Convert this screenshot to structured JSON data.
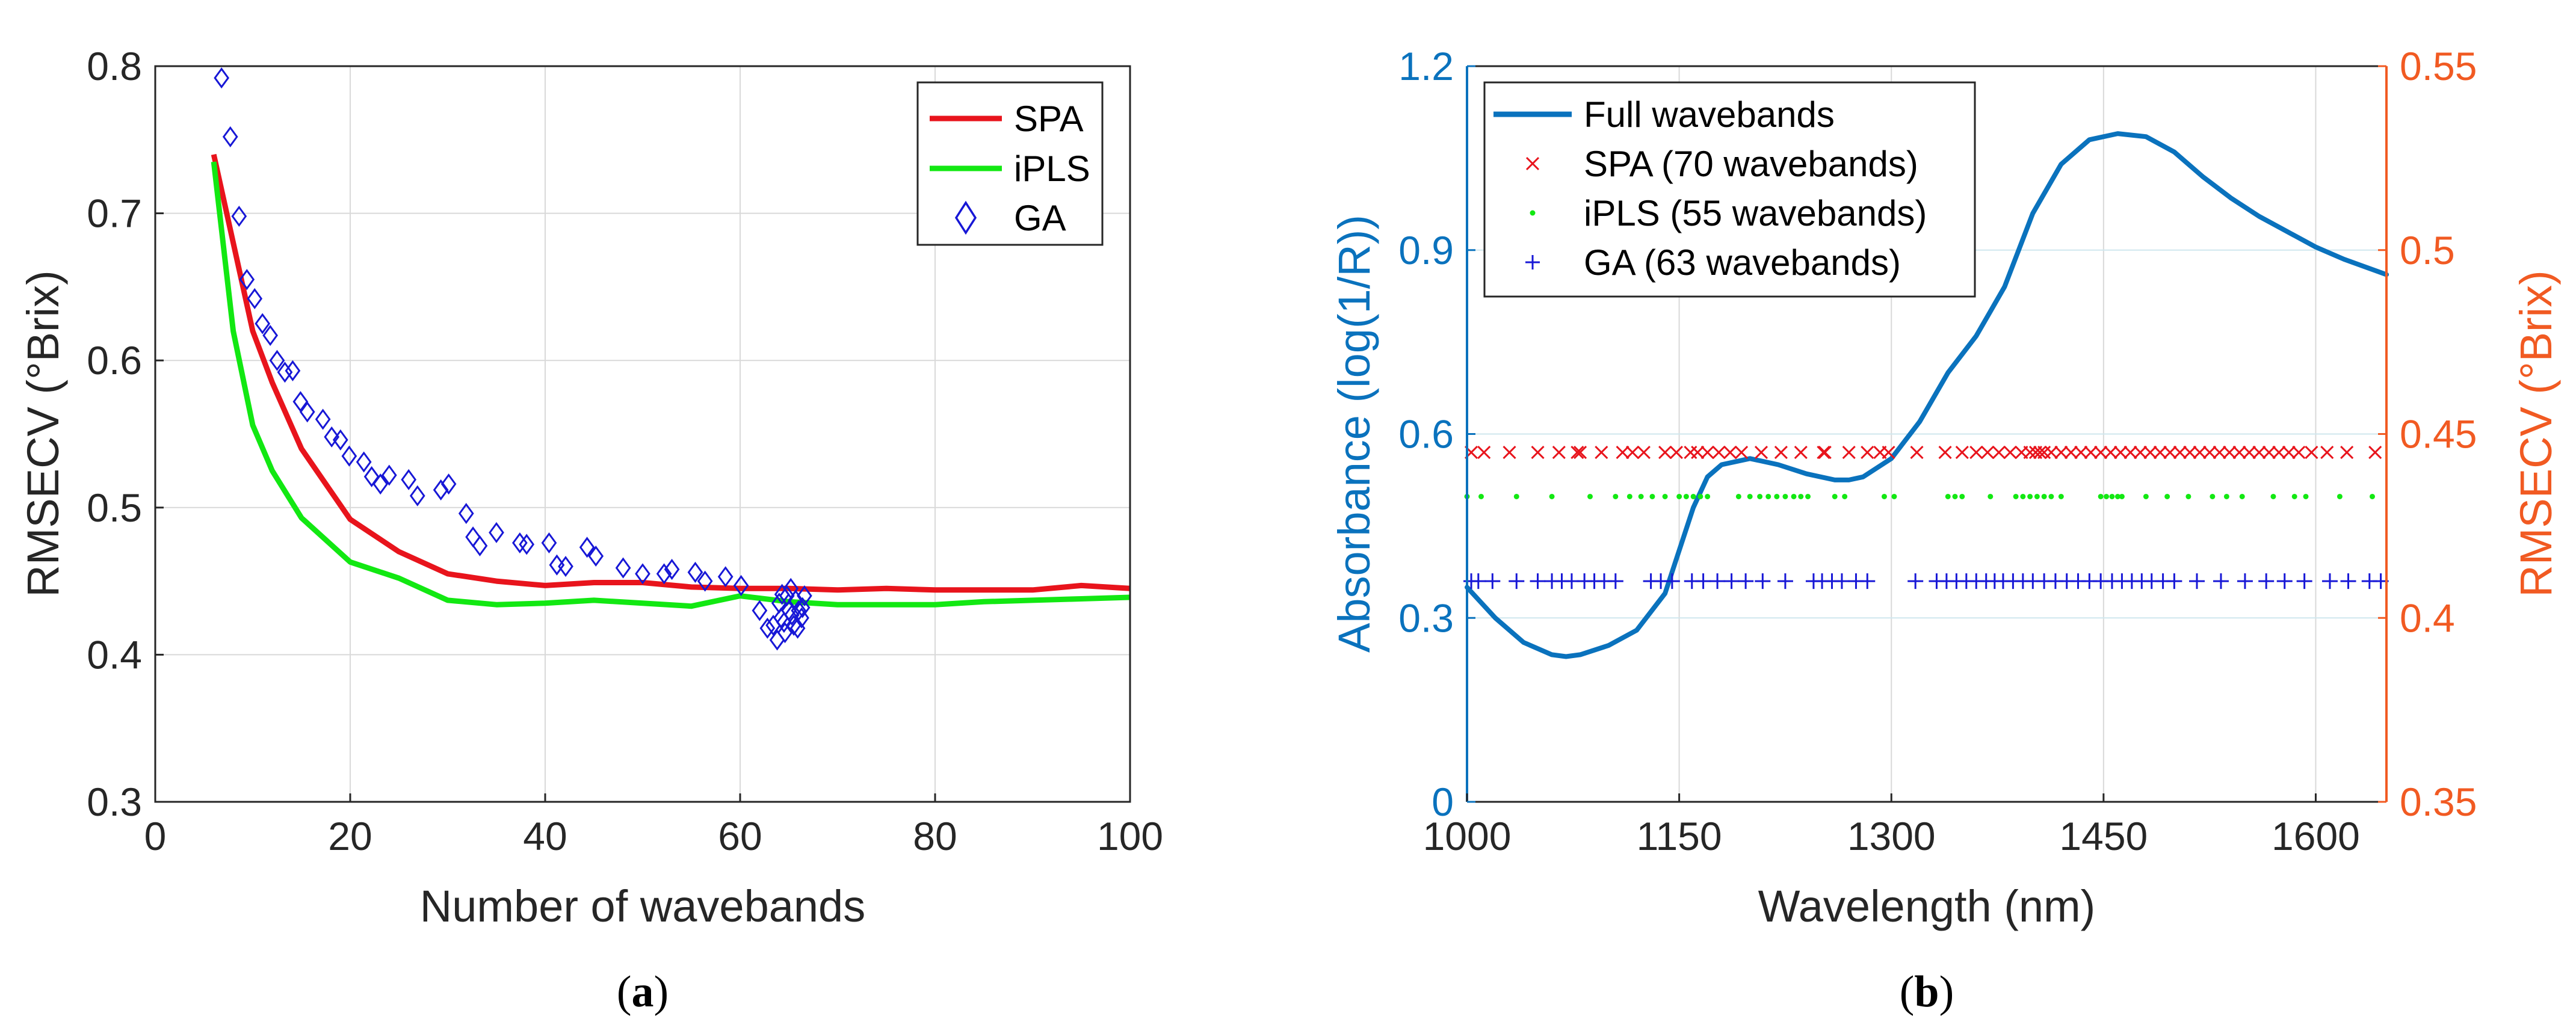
{
  "colors": {
    "spa": "#e8141c",
    "ipls": "#12e812",
    "ga": "#1717d6",
    "full": "#0a72bd",
    "right_axis": "#f15a22",
    "axis": "#262626",
    "grid": "#d9d9d9"
  },
  "panel_a": {
    "caption": {
      "open": "(",
      "letter": "a",
      "close": ")"
    },
    "legend": {
      "spa": "SPA",
      "ipls": "iPLS",
      "ga": "GA"
    }
  },
  "panel_b": {
    "caption": {
      "open": "(",
      "letter": "b",
      "close": ")"
    },
    "legend": {
      "full": "Full wavebands",
      "spa": "SPA (70 wavebands)",
      "ipls": "iPLS (55 wavebands)",
      "ga": "GA (63 wavebands)"
    }
  },
  "chart_data": [
    {
      "type": "line",
      "id": "a",
      "title": "",
      "xlabel": "Number of wavebands",
      "ylabel": "RMSECV (°Brix)",
      "xlim": [
        0,
        100
      ],
      "ylim": [
        0.3,
        0.8
      ],
      "xticks": [
        0,
        20,
        40,
        60,
        80,
        100
      ],
      "xtick_labels": [
        "0",
        "20",
        "40",
        "60",
        "80",
        "100"
      ],
      "yticks": [
        0.3,
        0.4,
        0.5,
        0.6,
        0.7,
        0.8
      ],
      "ytick_labels": [
        "0.3",
        "0.4",
        "0.5",
        "0.6",
        "0.7",
        "0.8"
      ],
      "grid": true,
      "legend_position": "top-right",
      "series": [
        {
          "name": "SPA",
          "kind": "line",
          "color_key": "spa",
          "x": [
            6,
            8,
            10,
            12,
            15,
            20,
            25,
            30,
            35,
            40,
            45,
            50,
            55,
            60,
            65,
            70,
            75,
            80,
            85,
            90,
            95,
            100
          ],
          "y": [
            0.74,
            0.68,
            0.62,
            0.585,
            0.54,
            0.492,
            0.47,
            0.455,
            0.45,
            0.447,
            0.449,
            0.449,
            0.446,
            0.445,
            0.445,
            0.444,
            0.445,
            0.444,
            0.444,
            0.444,
            0.447,
            0.445
          ]
        },
        {
          "name": "iPLS",
          "kind": "line",
          "color_key": "ipls",
          "x": [
            6,
            8,
            10,
            12,
            15,
            20,
            25,
            30,
            35,
            40,
            45,
            50,
            55,
            60,
            65,
            70,
            75,
            80,
            85,
            90,
            95,
            100
          ],
          "y": [
            0.735,
            0.62,
            0.556,
            0.525,
            0.493,
            0.463,
            0.452,
            0.437,
            0.434,
            0.435,
            0.437,
            0.435,
            0.433,
            0.44,
            0.436,
            0.434,
            0.434,
            0.434,
            0.436,
            0.437,
            0.438,
            0.439
          ]
        },
        {
          "name": "GA",
          "kind": "scatter",
          "marker": "diamond",
          "color_key": "ga",
          "x": [
            6.8,
            7.7,
            8.6,
            9.4,
            10.2,
            11,
            11.8,
            12.5,
            13.3,
            14.1,
            14.9,
            15.6,
            17.2,
            18.1,
            19,
            19.9,
            21.4,
            22.2,
            23.1,
            24,
            26,
            26.9,
            29.3,
            30.1,
            31.9,
            32.6,
            33.3,
            35,
            37.4,
            38.1,
            40.4,
            41.2,
            42.1,
            44.3,
            45.2,
            48,
            50,
            52.2,
            53,
            55.4,
            56.4,
            58.5,
            60.1,
            62,
            62.8,
            63.4,
            64,
            63.8,
            64.2,
            64.5,
            64.8,
            65,
            65.2,
            65.5,
            65.7,
            66,
            66.3,
            66.6,
            64.6,
            65.3,
            65.9,
            66.4,
            64.3
          ],
          "y": [
            0.792,
            0.752,
            0.698,
            0.655,
            0.642,
            0.625,
            0.617,
            0.6,
            0.592,
            0.593,
            0.572,
            0.565,
            0.56,
            0.548,
            0.546,
            0.535,
            0.531,
            0.521,
            0.516,
            0.522,
            0.519,
            0.508,
            0.512,
            0.516,
            0.496,
            0.48,
            0.474,
            0.483,
            0.476,
            0.475,
            0.476,
            0.461,
            0.46,
            0.473,
            0.467,
            0.459,
            0.455,
            0.455,
            0.458,
            0.456,
            0.45,
            0.453,
            0.447,
            0.43,
            0.418,
            0.42,
            0.435,
            0.41,
            0.425,
            0.422,
            0.44,
            0.43,
            0.445,
            0.42,
            0.437,
            0.43,
            0.425,
            0.44,
            0.415,
            0.427,
            0.418,
            0.432,
            0.441
          ]
        }
      ]
    },
    {
      "type": "line",
      "id": "b",
      "title": "",
      "xlabel": "Wavelength (nm)",
      "ylabel": "Absorbance (log(1/R))",
      "ylabel_right": "RMSECV (°Brix)",
      "xlim": [
        1000,
        1650
      ],
      "ylim": [
        0,
        1.2
      ],
      "ylim_right": [
        0.35,
        0.55
      ],
      "xticks": [
        1000,
        1150,
        1300,
        1450,
        1600
      ],
      "xtick_labels": [
        "1000",
        "1150",
        "1300",
        "1450",
        "1600"
      ],
      "yticks": [
        0,
        0.3,
        0.6,
        0.9,
        1.2
      ],
      "ytick_labels": [
        "0",
        "0.3",
        "0.6",
        "0.9",
        "1.2"
      ],
      "yticks_right": [
        0.35,
        0.4,
        0.45,
        0.5,
        0.55
      ],
      "ytick_labels_right": [
        "0.35",
        "0.4",
        "0.45",
        "0.5",
        "0.55"
      ],
      "grid": true,
      "legend_position": "top-left",
      "series": [
        {
          "name": "Full wavebands",
          "kind": "line",
          "axis": "left",
          "color_key": "full",
          "x": [
            1000,
            1020,
            1040,
            1060,
            1070,
            1080,
            1100,
            1120,
            1140,
            1150,
            1160,
            1170,
            1180,
            1200,
            1220,
            1240,
            1260,
            1270,
            1280,
            1300,
            1320,
            1340,
            1360,
            1380,
            1400,
            1420,
            1440,
            1460,
            1480,
            1500,
            1520,
            1540,
            1560,
            1580,
            1600,
            1620,
            1650
          ],
          "y": [
            0.35,
            0.3,
            0.26,
            0.24,
            0.237,
            0.24,
            0.255,
            0.28,
            0.34,
            0.41,
            0.48,
            0.53,
            0.55,
            0.56,
            0.55,
            0.535,
            0.525,
            0.525,
            0.53,
            0.56,
            0.62,
            0.7,
            0.76,
            0.84,
            0.96,
            1.04,
            1.08,
            1.09,
            1.085,
            1.06,
            1.02,
            0.985,
            0.955,
            0.93,
            0.905,
            0.885,
            0.86
          ]
        },
        {
          "name": "SPA (70 wavebands)",
          "kind": "scatter",
          "marker": "x",
          "axis": "right",
          "level": 0.445,
          "color_key": "spa",
          "x": [
            1003,
            1012,
            1030,
            1050,
            1065,
            1078,
            1080,
            1095,
            1110,
            1117,
            1125,
            1140,
            1148,
            1158,
            1163,
            1170,
            1178,
            1186,
            1194,
            1208,
            1222,
            1236,
            1252,
            1253,
            1270,
            1283,
            1292,
            1298,
            1318,
            1338,
            1350,
            1360,
            1368,
            1376,
            1384,
            1392,
            1398,
            1402,
            1405,
            1408,
            1413,
            1420,
            1427,
            1434,
            1441,
            1448,
            1455,
            1462,
            1469,
            1476,
            1483,
            1490,
            1497,
            1504,
            1511,
            1518,
            1525,
            1532,
            1539,
            1546,
            1553,
            1560,
            1567,
            1574,
            1581,
            1588,
            1597,
            1608,
            1622,
            1642
          ]
        },
        {
          "name": "iPLS (55 wavebands)",
          "kind": "scatter",
          "marker": "dot",
          "axis": "right",
          "level": 0.433,
          "color_key": "ipls",
          "x": [
            1000,
            1010,
            1035,
            1060,
            1087,
            1105,
            1115,
            1123,
            1131,
            1140,
            1150,
            1155,
            1160,
            1165,
            1170,
            1192,
            1200,
            1207,
            1213,
            1219,
            1225,
            1231,
            1236,
            1241,
            1260,
            1267,
            1295,
            1302,
            1340,
            1345,
            1350,
            1370,
            1388,
            1393,
            1398,
            1403,
            1408,
            1413,
            1420,
            1448,
            1452,
            1456,
            1460,
            1463,
            1480,
            1495,
            1510,
            1527,
            1537,
            1548,
            1570,
            1585,
            1593,
            1617,
            1640
          ]
        },
        {
          "name": "GA (63 wavebands)",
          "kind": "scatter",
          "marker": "plus",
          "axis": "right",
          "level": 0.41,
          "color_key": "ga",
          "x": [
            1003,
            1008,
            1018,
            1035,
            1050,
            1060,
            1067,
            1074,
            1083,
            1090,
            1097,
            1105,
            1130,
            1137,
            1145,
            1159,
            1167,
            1177,
            1187,
            1197,
            1209,
            1225,
            1245,
            1251,
            1258,
            1265,
            1275,
            1283,
            1317,
            1332,
            1339,
            1346,
            1353,
            1360,
            1367,
            1373,
            1379,
            1386,
            1393,
            1400,
            1408,
            1416,
            1424,
            1432,
            1440,
            1448,
            1456,
            1463,
            1470,
            1477,
            1484,
            1492,
            1500,
            1516,
            1533,
            1550,
            1565,
            1578,
            1592,
            1610,
            1623,
            1638,
            1646
          ]
        }
      ]
    }
  ]
}
